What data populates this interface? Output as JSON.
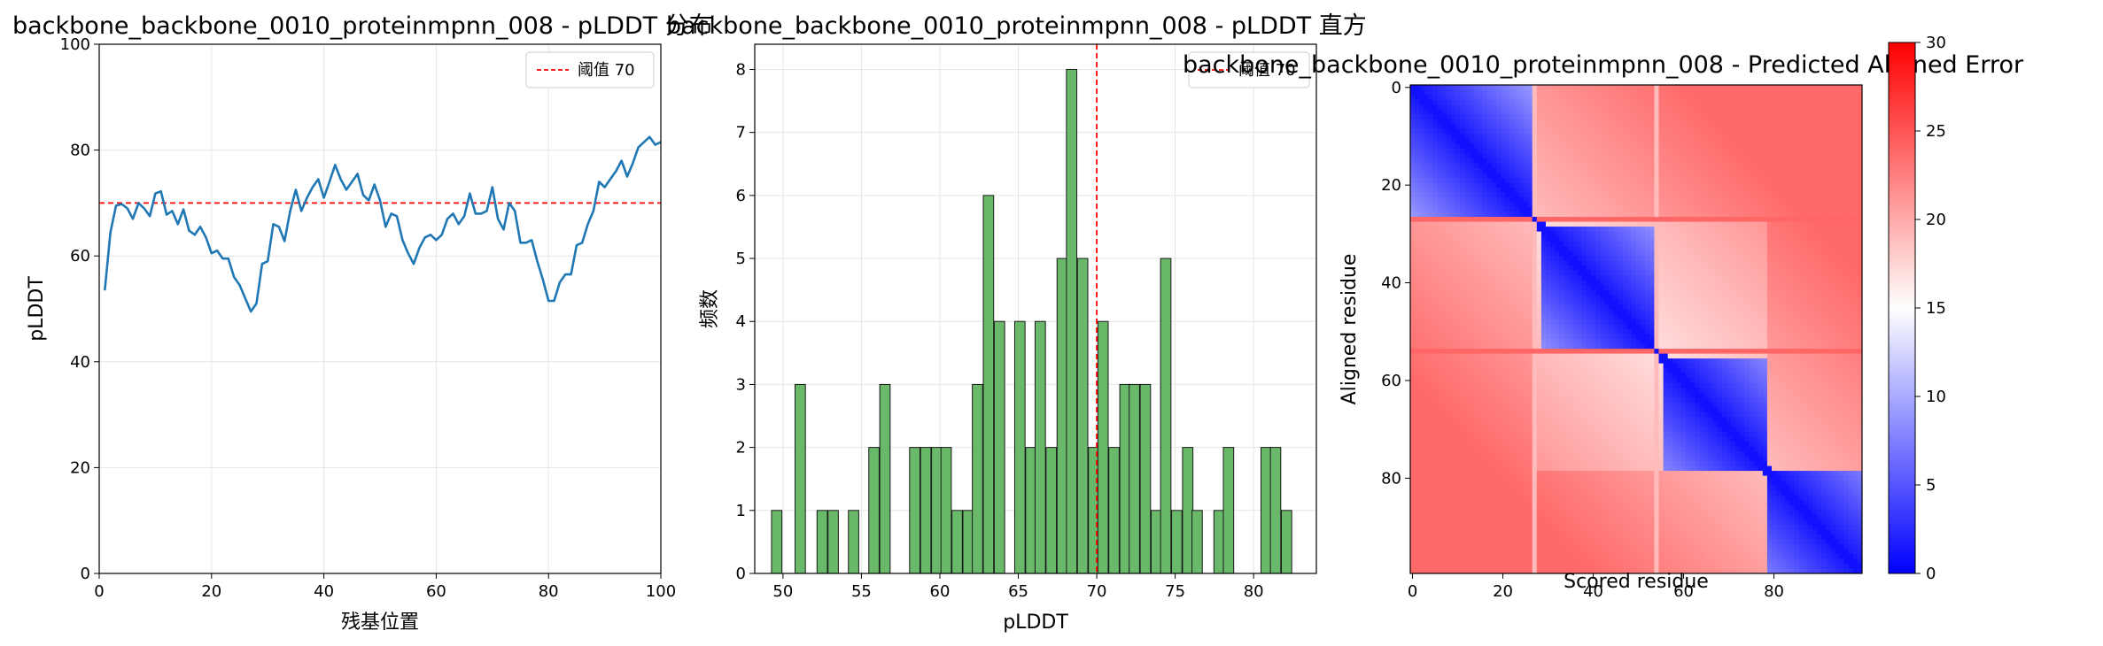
{
  "figure": {
    "background": "#ffffff"
  },
  "chart_data": [
    {
      "type": "line",
      "title": "backbone_backbone_0010_proteinmpnn_008 - pLDDT 分布",
      "xlabel": "残基位置",
      "ylabel": "pLDDT",
      "xlim": [
        0,
        100
      ],
      "ylim": [
        0,
        100
      ],
      "xticks": [
        0,
        20,
        40,
        60,
        80,
        100
      ],
      "yticks": [
        0,
        20,
        40,
        60,
        80,
        100
      ],
      "grid": true,
      "legend_position": "top-right",
      "series_color": "#1f77b4",
      "x": [
        1,
        2,
        3,
        4,
        5,
        6,
        7,
        8,
        9,
        10,
        11,
        12,
        13,
        14,
        15,
        16,
        17,
        18,
        19,
        20,
        21,
        22,
        23,
        24,
        25,
        26,
        27,
        28,
        29,
        30,
        31,
        32,
        33,
        34,
        35,
        36,
        37,
        38,
        39,
        40,
        41,
        42,
        43,
        44,
        45,
        46,
        47,
        48,
        49,
        50,
        51,
        52,
        53,
        54,
        55,
        56,
        57,
        58,
        59,
        60,
        61,
        62,
        63,
        64,
        65,
        66,
        67,
        68,
        69,
        70,
        71,
        72,
        73,
        74,
        75,
        76,
        77,
        78,
        79,
        80,
        81,
        82,
        83,
        84,
        85,
        86,
        87,
        88,
        89,
        90,
        91,
        92,
        93,
        94,
        95,
        96,
        97,
        98,
        99,
        100
      ],
      "y": [
        53.5,
        64.5,
        69.5,
        69.8,
        69.0,
        67.0,
        70.0,
        69.0,
        67.5,
        71.8,
        72.2,
        67.8,
        68.5,
        66.0,
        68.8,
        64.8,
        64.0,
        65.5,
        63.5,
        60.5,
        61.0,
        59.5,
        59.5,
        56.0,
        54.5,
        52.0,
        49.5,
        51.0,
        58.5,
        59.0,
        66.0,
        65.5,
        62.8,
        68.5,
        72.5,
        68.5,
        71.0,
        73.0,
        74.5,
        71.0,
        74.0,
        77.2,
        74.5,
        72.5,
        74.0,
        75.5,
        71.5,
        70.5,
        73.5,
        70.5,
        65.5,
        68.0,
        67.5,
        63.0,
        60.5,
        58.5,
        61.5,
        63.5,
        64.0,
        63.0,
        64.0,
        67.0,
        68.0,
        66.0,
        67.5,
        71.8,
        68.0,
        68.0,
        68.5,
        73.0,
        67.0,
        65.0,
        70.0,
        68.5,
        62.5,
        62.5,
        63.0,
        59.0,
        55.5,
        51.5,
        51.5,
        55.0,
        56.5,
        56.5,
        62.0,
        62.5,
        66.0,
        68.5,
        74.0,
        73.0,
        74.5,
        76.0,
        78.0,
        75.0,
        77.5,
        80.5,
        81.5,
        82.5,
        81.0,
        81.5
      ],
      "threshold": {
        "value": 70,
        "label": "阈值 70",
        "color": "#ff0000"
      }
    },
    {
      "type": "histogram",
      "title": "backbone_backbone_0010_proteinmpnn_008 - pLDDT 直方",
      "xlabel": "pLDDT",
      "ylabel": "频数",
      "xlim": [
        48.2,
        84.0
      ],
      "ylim": [
        0,
        8.4
      ],
      "xticks": [
        50,
        55,
        60,
        65,
        70,
        75,
        80
      ],
      "yticks": [
        0,
        1,
        2,
        3,
        4,
        5,
        6,
        7,
        8
      ],
      "grid": true,
      "legend_position": "top-right",
      "bar_color": "#6ab86a",
      "bar_edge_color": "#1a1a1a",
      "bin_width": 0.66,
      "bins": [
        {
          "x": 49.6,
          "count": 1
        },
        {
          "x": 51.1,
          "count": 3
        },
        {
          "x": 52.5,
          "count": 1
        },
        {
          "x": 53.2,
          "count": 1
        },
        {
          "x": 54.5,
          "count": 1
        },
        {
          "x": 55.8,
          "count": 2
        },
        {
          "x": 56.5,
          "count": 3
        },
        {
          "x": 58.4,
          "count": 2
        },
        {
          "x": 59.1,
          "count": 2
        },
        {
          "x": 59.8,
          "count": 2
        },
        {
          "x": 60.4,
          "count": 2
        },
        {
          "x": 61.1,
          "count": 1
        },
        {
          "x": 61.8,
          "count": 1
        },
        {
          "x": 62.4,
          "count": 3
        },
        {
          "x": 63.1,
          "count": 6
        },
        {
          "x": 63.8,
          "count": 4
        },
        {
          "x": 65.1,
          "count": 4
        },
        {
          "x": 65.8,
          "count": 2
        },
        {
          "x": 66.4,
          "count": 4
        },
        {
          "x": 67.1,
          "count": 2
        },
        {
          "x": 67.8,
          "count": 5
        },
        {
          "x": 68.4,
          "count": 8
        },
        {
          "x": 69.1,
          "count": 5
        },
        {
          "x": 69.8,
          "count": 2
        },
        {
          "x": 70.4,
          "count": 4
        },
        {
          "x": 71.1,
          "count": 2
        },
        {
          "x": 71.8,
          "count": 3
        },
        {
          "x": 72.4,
          "count": 3
        },
        {
          "x": 73.1,
          "count": 3
        },
        {
          "x": 73.8,
          "count": 1
        },
        {
          "x": 74.4,
          "count": 5
        },
        {
          "x": 75.1,
          "count": 1
        },
        {
          "x": 75.8,
          "count": 2
        },
        {
          "x": 76.4,
          "count": 1
        },
        {
          "x": 77.8,
          "count": 1
        },
        {
          "x": 78.4,
          "count": 2
        },
        {
          "x": 80.8,
          "count": 2
        },
        {
          "x": 81.4,
          "count": 2
        },
        {
          "x": 82.1,
          "count": 1
        }
      ],
      "threshold": {
        "value": 70,
        "label": "阈值 70",
        "color": "#ff0000"
      }
    },
    {
      "type": "heatmap",
      "title": "backbone_backbone_0010_proteinmpnn_008 - Predicted Aligned Error",
      "xlabel": "Scored residue",
      "ylabel": "Aligned residue",
      "size": 100,
      "xticks": [
        0,
        20,
        40,
        60,
        80
      ],
      "yticks": [
        0,
        20,
        40,
        60,
        80
      ],
      "colormap": "bwr",
      "colorbar": {
        "min": 0,
        "max": 30,
        "ticks": [
          0,
          5,
          10,
          15,
          20,
          25,
          30
        ]
      },
      "domains": [
        {
          "start": 0,
          "end": 26
        },
        {
          "start": 29,
          "end": 53
        },
        {
          "start": 56,
          "end": 78
        },
        {
          "start": 79,
          "end": 99
        }
      ],
      "high_error_rows": [
        27,
        54
      ]
    }
  ]
}
